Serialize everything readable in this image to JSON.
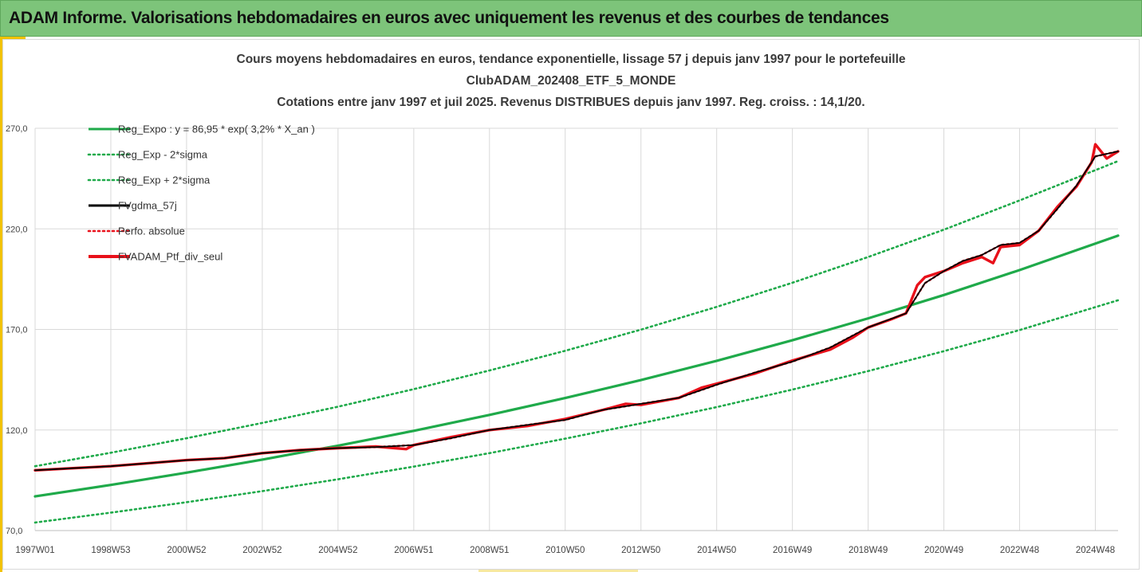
{
  "banner": {
    "title": "ADAM Informe. Valorisations hebdomadaires en euros avec uniquement les revenus et des courbes de tendances"
  },
  "chart_data": {
    "type": "line",
    "title_lines": [
      "Cours moyens hebdomadaires  en euros, tendance exponentielle, lissage 57 j depuis janv 1997 pour le portefeuille",
      "ClubADAM_202408_ETF_5_MONDE",
      "Cotations  entre janv 1997 et juil 2025. Revenus DISTRIBUES depuis janv 1997. Reg. croiss. : 14,1/20."
    ],
    "xlabel": "",
    "ylabel": "",
    "ylim": [
      70,
      270
    ],
    "yticks": [
      "70,0",
      "120,0",
      "170,0",
      "220,0",
      "270,0"
    ],
    "ytick_values": [
      70,
      120,
      170,
      220,
      270
    ],
    "xticks": [
      "1997W01",
      "1998W53",
      "2000W52",
      "2002W52",
      "2004W52",
      "2006W51",
      "2008W51",
      "2010W50",
      "2012W50",
      "2014W50",
      "2016W49",
      "2018W49",
      "2020W49",
      "2022W48",
      "2024W48"
    ],
    "xtick_years": [
      1997.0,
      1999.0,
      2001.0,
      2003.0,
      2005.0,
      2007.0,
      2009.0,
      2011.0,
      2013.0,
      2015.0,
      2017.0,
      2019.0,
      2021.0,
      2023.0,
      2025.0
    ],
    "xlim": [
      1997.0,
      2025.6
    ],
    "grid": true,
    "legend_position": "top-left",
    "series": [
      {
        "name": "Reg_Expo : y = 86,95 * exp( 3,2% *  X_an )",
        "color": "#1faa4a",
        "style": "solid",
        "x": [
          1997,
          1999,
          2001,
          2003,
          2005,
          2007,
          2009,
          2011,
          2013,
          2015,
          2017,
          2019,
          2021,
          2023,
          2025.6
        ],
        "values": [
          87.0,
          92.7,
          98.8,
          105.3,
          112.2,
          119.6,
          127.5,
          135.9,
          144.8,
          154.4,
          164.6,
          175.5,
          187.1,
          199.5,
          216.6
        ]
      },
      {
        "name": "Reg_Exp - 2*sigma",
        "color": "#1faa4a",
        "style": "dotted",
        "x": [
          1997,
          1999,
          2001,
          2003,
          2005,
          2007,
          2009,
          2011,
          2013,
          2015,
          2017,
          2019,
          2021,
          2023,
          2025.6
        ],
        "values": [
          74.0,
          78.9,
          84.1,
          89.6,
          95.5,
          101.8,
          108.5,
          115.7,
          123.3,
          131.4,
          140.1,
          149.3,
          159.2,
          169.7,
          184.5
        ]
      },
      {
        "name": "Reg_Exp + 2*sigma",
        "color": "#1faa4a",
        "style": "dotted",
        "x": [
          1997,
          1999,
          2001,
          2003,
          2005,
          2007,
          2009,
          2011,
          2013,
          2015,
          2017,
          2019,
          2021,
          2023,
          2025.6
        ],
        "values": [
          102.0,
          108.7,
          115.9,
          123.5,
          131.6,
          140.3,
          149.6,
          159.4,
          169.9,
          181.2,
          193.2,
          206.0,
          219.6,
          234.1,
          253.7
        ]
      },
      {
        "name": "FVgdma_57j",
        "color": "#000000",
        "style": "solid",
        "x": [
          1997,
          1998,
          1999,
          2000,
          2001,
          2002,
          2003,
          2004,
          2005,
          2006,
          2007,
          2008,
          2009,
          2010,
          2011,
          2012,
          2013,
          2014,
          2015,
          2016,
          2017,
          2018,
          2019,
          2020,
          2020.5,
          2021,
          2021.5,
          2022,
          2022.5,
          2023,
          2023.5,
          2024,
          2024.5,
          2025,
          2025.6
        ],
        "values": [
          100.0,
          101.0,
          102.0,
          103.5,
          105.0,
          106.0,
          108.5,
          110.0,
          111.0,
          111.5,
          112.5,
          116.0,
          120.0,
          122.5,
          125.0,
          130.0,
          133.0,
          136.0,
          142.5,
          148.5,
          154.0,
          161.0,
          171.0,
          178.0,
          193.0,
          199.0,
          204.0,
          207.0,
          212.0,
          213.0,
          219.0,
          230.0,
          241.5,
          256.0,
          258.5
        ]
      },
      {
        "name": "Perfo. absolue",
        "color": "#e8101a",
        "style": "dotted",
        "x": [
          1997,
          1998,
          1999,
          2000,
          2001,
          2002,
          2003,
          2004,
          2005,
          2006,
          2007,
          2008,
          2009,
          2010,
          2011,
          2012,
          2013,
          2014,
          2015,
          2016,
          2017,
          2018,
          2019,
          2020,
          2020.5,
          2021,
          2021.5,
          2022,
          2022.5,
          2023,
          2023.5,
          2024,
          2024.5,
          2025,
          2025.6
        ],
        "values": [
          100.0,
          101.0,
          102.0,
          103.5,
          105.0,
          106.0,
          108.5,
          110.0,
          111.0,
          111.5,
          112.5,
          116.0,
          120.0,
          122.5,
          125.0,
          130.0,
          133.0,
          136.0,
          142.5,
          148.5,
          154.0,
          161.0,
          171.0,
          178.0,
          193.0,
          199.0,
          204.0,
          207.0,
          212.0,
          213.0,
          219.0,
          230.0,
          241.5,
          256.0,
          258.5
        ]
      },
      {
        "name": "FVADAM_Ptf_div_seul",
        "color": "#e8101a",
        "style": "solid",
        "x": [
          1997,
          1998,
          1999,
          2000,
          2001,
          2002,
          2003,
          2004,
          2005,
          2006,
          2006.8,
          2007,
          2008,
          2009,
          2010,
          2011,
          2012,
          2012.6,
          2013,
          2014,
          2014.6,
          2015,
          2016,
          2017,
          2018,
          2018.6,
          2019,
          2019.6,
          2020,
          2020.3,
          2020.5,
          2021,
          2021.5,
          2022,
          2022.3,
          2022.5,
          2023,
          2023.5,
          2024,
          2024.5,
          2024.9,
          2025,
          2025.3,
          2025.6
        ],
        "values": [
          100.0,
          101.0,
          102.0,
          103.5,
          105.0,
          106.0,
          108.5,
          110.0,
          111.0,
          111.8,
          110.5,
          112.5,
          116.5,
          120.0,
          122.0,
          125.5,
          130.0,
          133.0,
          132.5,
          136.0,
          141.0,
          143.0,
          148.0,
          154.5,
          160.0,
          166.0,
          171.0,
          175.0,
          178.0,
          192.0,
          196.0,
          199.0,
          203.0,
          206.0,
          203.0,
          211.0,
          212.0,
          219.0,
          231.0,
          241.0,
          253.0,
          262.0,
          255.0,
          258.5
        ]
      }
    ]
  }
}
